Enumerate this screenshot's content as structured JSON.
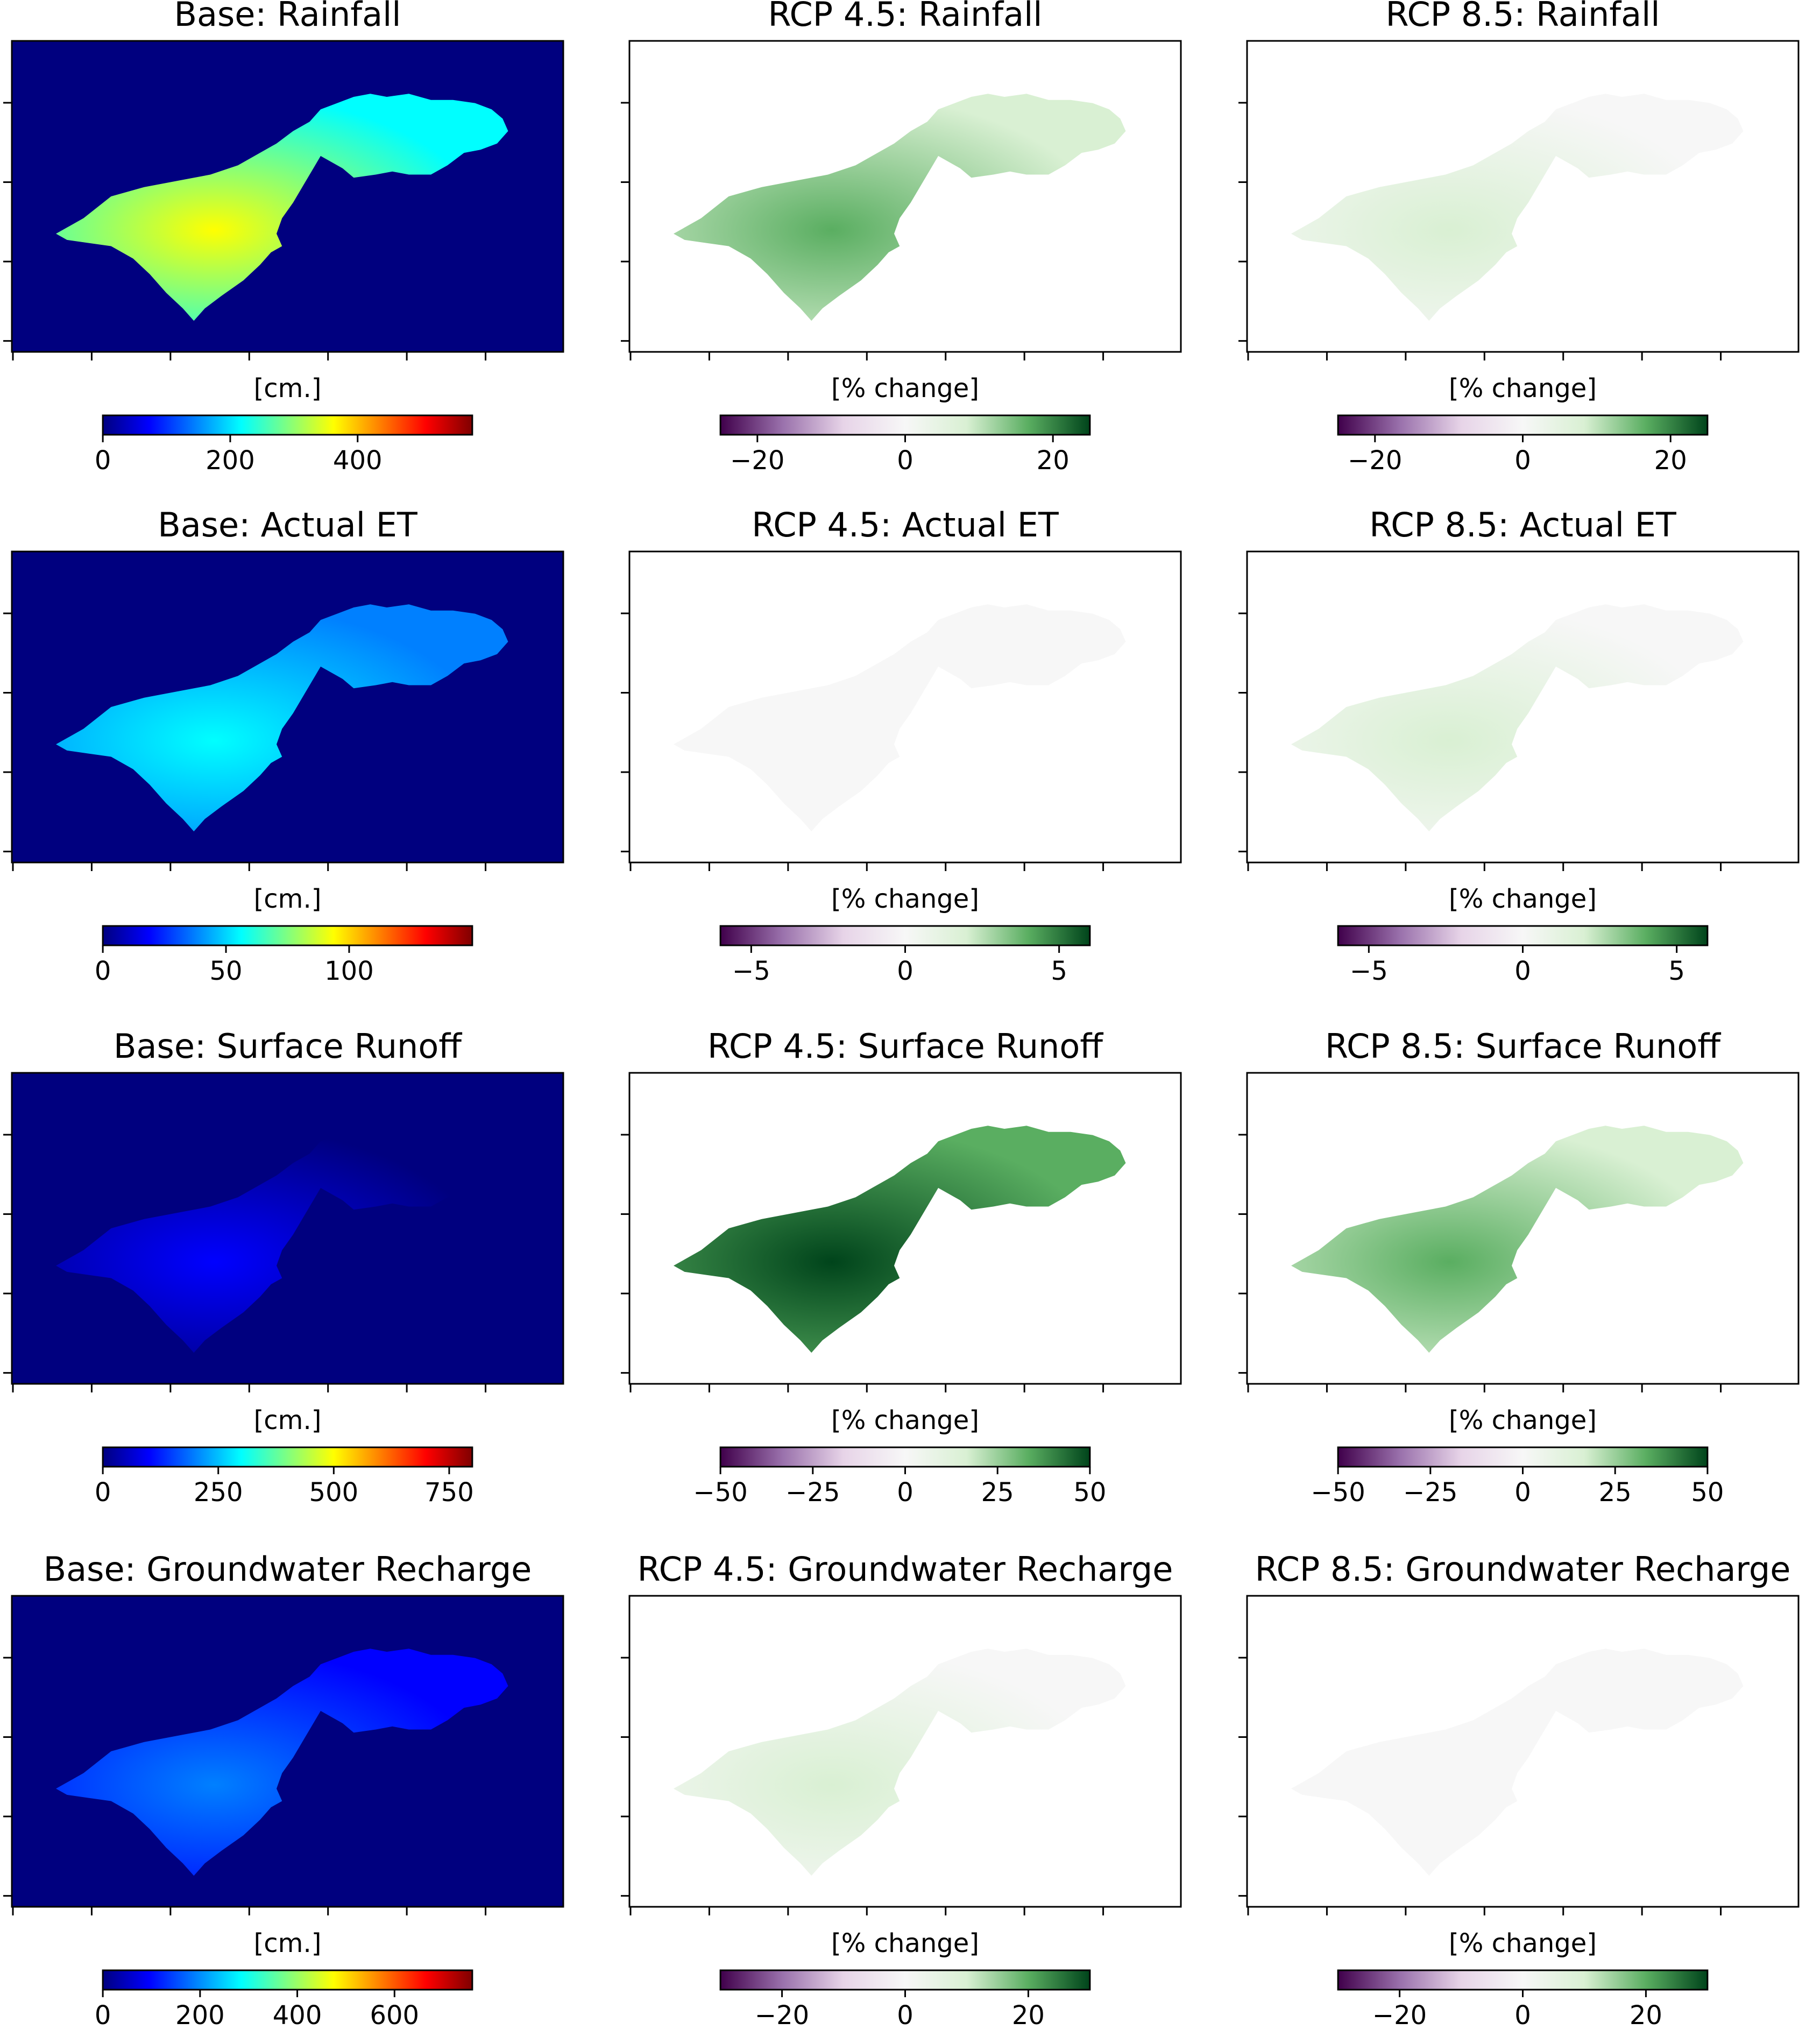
{
  "colors": {
    "base_background": "#00007f",
    "frame": "#000000",
    "jet": [
      "#00007f",
      "#0000ff",
      "#0080ff",
      "#00ffff",
      "#80ff80",
      "#ffff00",
      "#ff8000",
      "#ff0000",
      "#7f0000"
    ],
    "prgn": [
      "#40004b",
      "#9970ab",
      "#e7d4e8",
      "#f7f7f7",
      "#d9f0d3",
      "#5aae61",
      "#00441b"
    ]
  },
  "chart_data": [
    {
      "type": "heatmap",
      "title": "Base: Rainfall",
      "colorbar_label": "[cm.]",
      "colormap": "jet",
      "colorbar_ticks": [
        "0",
        "200",
        "400"
      ],
      "colorbar_range": [
        0,
        580
      ],
      "fill_level": 0.58
    },
    {
      "type": "heatmap",
      "title": "RCP 4.5: Rainfall",
      "colorbar_label": "[% change]",
      "colormap": "PRGn",
      "colorbar_ticks": [
        "−20",
        "0",
        "20"
      ],
      "colorbar_range": [
        -25,
        25
      ],
      "fill_level": 0.78
    },
    {
      "type": "heatmap",
      "title": "RCP 8.5: Rainfall",
      "colorbar_label": "[% change]",
      "colormap": "PRGn",
      "colorbar_ticks": [
        "−20",
        "0",
        "20"
      ],
      "colorbar_range": [
        -25,
        25
      ],
      "fill_level": 0.62
    },
    {
      "type": "heatmap",
      "title": "Base: Actual ET",
      "colorbar_label": "[cm.]",
      "colormap": "jet",
      "colorbar_ticks": [
        "0",
        "50",
        "100"
      ],
      "colorbar_range": [
        0,
        150
      ],
      "fill_level": 0.35
    },
    {
      "type": "heatmap",
      "title": "RCP 4.5: Actual ET",
      "colorbar_label": "[% change]",
      "colormap": "PRGn",
      "colorbar_ticks": [
        "−5",
        "0",
        "5"
      ],
      "colorbar_range": [
        -6,
        6
      ],
      "fill_level": 0.53
    },
    {
      "type": "heatmap",
      "title": "RCP 8.5: Actual ET",
      "colorbar_label": "[% change]",
      "colormap": "PRGn",
      "colorbar_ticks": [
        "−5",
        "0",
        "5"
      ],
      "colorbar_range": [
        -6,
        6
      ],
      "fill_level": 0.6
    },
    {
      "type": "heatmap",
      "title": "Base: Surface Runoff",
      "colorbar_label": "[cm.]",
      "colormap": "jet",
      "colorbar_ticks": [
        "0",
        "250",
        "500",
        "750"
      ],
      "colorbar_range": [
        0,
        800
      ],
      "fill_level": 0.08
    },
    {
      "type": "heatmap",
      "title": "RCP 4.5: Surface Runoff",
      "colorbar_label": "[% change]",
      "colormap": "PRGn",
      "colorbar_ticks": [
        "−50",
        "−25",
        "0",
        "25",
        "50"
      ],
      "colorbar_range": [
        -50,
        50
      ],
      "fill_level": 1.0
    },
    {
      "type": "heatmap",
      "title": "RCP 8.5: Surface Runoff",
      "colorbar_label": "[% change]",
      "colormap": "PRGn",
      "colorbar_ticks": [
        "−50",
        "−25",
        "0",
        "25",
        "50"
      ],
      "colorbar_range": [
        -50,
        50
      ],
      "fill_level": 0.85
    },
    {
      "type": "heatmap",
      "title": "Base: Groundwater Recharge",
      "colorbar_label": "[cm.]",
      "colormap": "jet",
      "colorbar_ticks": [
        "0",
        "200",
        "400",
        "600"
      ],
      "colorbar_range": [
        0,
        760
      ],
      "fill_level": 0.25
    },
    {
      "type": "heatmap",
      "title": "RCP 4.5: Groundwater Recharge",
      "colorbar_label": "[% change]",
      "colormap": "PRGn",
      "colorbar_ticks": [
        "−20",
        "0",
        "20"
      ],
      "colorbar_range": [
        -30,
        30
      ],
      "fill_level": 0.65
    },
    {
      "type": "heatmap",
      "title": "RCP 8.5: Groundwater Recharge",
      "colorbar_label": "[% change]",
      "colormap": "PRGn",
      "colorbar_ticks": [
        "−20",
        "0",
        "20"
      ],
      "colorbar_range": [
        -30,
        30
      ],
      "fill_level": 0.58
    }
  ]
}
